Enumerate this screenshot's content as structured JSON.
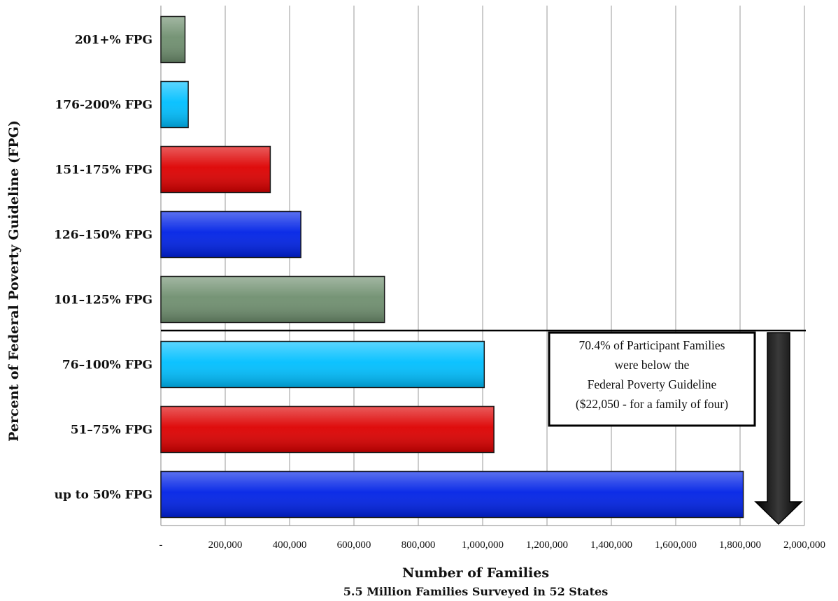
{
  "chart_data": {
    "type": "bar",
    "orientation": "horizontal",
    "categories": [
      "201+% FPG",
      "176-200% FPG",
      "151-175% FPG",
      "126–150% FPG",
      "101–125% FPG",
      "76–100% FPG",
      "51–75% FPG",
      "up to 50% FPG"
    ],
    "values": [
      75000,
      85000,
      340000,
      435000,
      695000,
      1005000,
      1035000,
      1810000
    ],
    "colors": [
      "#6f8f6f",
      "#00bfff",
      "#dd0000",
      "#0022e6",
      "#6f8f6f",
      "#00bfff",
      "#dd0000",
      "#0022e6"
    ],
    "xlim": [
      0,
      2000000
    ],
    "x_ticks": [
      {
        "value": 0,
        "label": "-"
      },
      {
        "value": 200000,
        "label": "200,000"
      },
      {
        "value": 400000,
        "label": "400,000"
      },
      {
        "value": 600000,
        "label": "600,000"
      },
      {
        "value": 800000,
        "label": "800,000"
      },
      {
        "value": 1000000,
        "label": "1,000,000"
      },
      {
        "value": 1200000,
        "label": "1,200,000"
      },
      {
        "value": 1400000,
        "label": "1,400,000"
      },
      {
        "value": 1600000,
        "label": "1,600,000"
      },
      {
        "value": 1800000,
        "label": "1,800,000"
      },
      {
        "value": 2000000,
        "label": "2,000,000"
      }
    ],
    "xlabel": "Number of Families",
    "subtitle": "5.5 Million Families Surveyed in 52 States",
    "ylabel": "Percent of Federal Poverty Guideline (FPG)",
    "grid": "vertical",
    "annotation": {
      "lines": [
        "70.4% of Participant Families",
        "were below the",
        "Federal Poverty Guideline",
        "($22,050 - for a family of four)"
      ],
      "arrow_color": "#000000"
    }
  }
}
